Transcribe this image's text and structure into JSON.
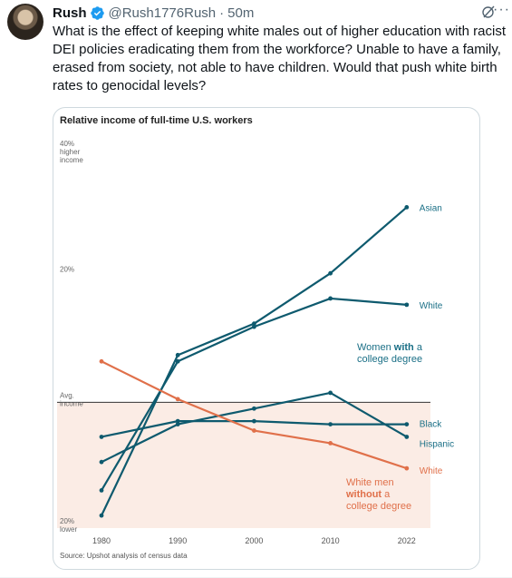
{
  "tweet": {
    "display_name": "Rush",
    "handle": "@Rush1776Rush",
    "separator": "·",
    "time": "50m",
    "text": "What is the effect of keeping white males out of higher education with racist DEI policies eradicating them from the workforce? Unable to have a family, erased from society, not able to have children.  Would that push white birth rates to genocidal levels?",
    "icons": {
      "verified": "verified-badge-icon",
      "grok": "grok-icon",
      "more": "more-icon"
    },
    "colors": {
      "verified": "#1d9bf0",
      "text": "#0f1419",
      "muted": "#536471"
    }
  },
  "chart_data": {
    "type": "line",
    "title": "Relative income of full-time U.S. workers",
    "source": "Source: Upshot analysis of census data",
    "x": [
      1980,
      1990,
      2000,
      2010,
      2022
    ],
    "x_ticks": [
      "1980",
      "1990",
      "2000",
      "2010",
      "2022"
    ],
    "ylim": [
      -20,
      40
    ],
    "y_tick_labels": [
      {
        "value": 40,
        "lines": [
          "40%",
          "higher",
          "income"
        ]
      },
      {
        "value": 20,
        "lines": [
          "20%"
        ]
      },
      {
        "value": 0,
        "lines": [
          "Avg.",
          "income"
        ]
      },
      {
        "value": -20,
        "lines": [
          "20%",
          "lower"
        ]
      }
    ],
    "baseline": 0,
    "series": [
      {
        "name": "Asian",
        "group": "women",
        "color": "#0e5a6e",
        "values": [
          -18,
          7.5,
          12.5,
          20.5,
          31
        ]
      },
      {
        "name": "White",
        "group": "women",
        "color": "#0e5a6e",
        "values": [
          -14,
          6.5,
          12,
          16.5,
          15.5
        ]
      },
      {
        "name": "Black",
        "group": "women",
        "color": "#0e5a6e",
        "values": [
          -5.5,
          -3,
          -3,
          -3.5,
          -3.5
        ]
      },
      {
        "name": "Hispanic",
        "group": "women",
        "color": "#0e5a6e",
        "values": [
          -9.5,
          -3.5,
          -1,
          1.5,
          -5.5
        ]
      },
      {
        "name": "White",
        "group": "men",
        "color": "#e0704a",
        "values": [
          6.5,
          0.5,
          -4.5,
          -6.5,
          -10.5
        ]
      }
    ],
    "annotations": {
      "women_with": [
        "Women ",
        "with",
        " a",
        "college degree"
      ],
      "men_without": [
        "White men",
        "without",
        " a",
        "college degree"
      ]
    },
    "colors": {
      "teal": "#0e5a6e",
      "orange": "#e0704a",
      "shade": "#fbece5"
    }
  }
}
